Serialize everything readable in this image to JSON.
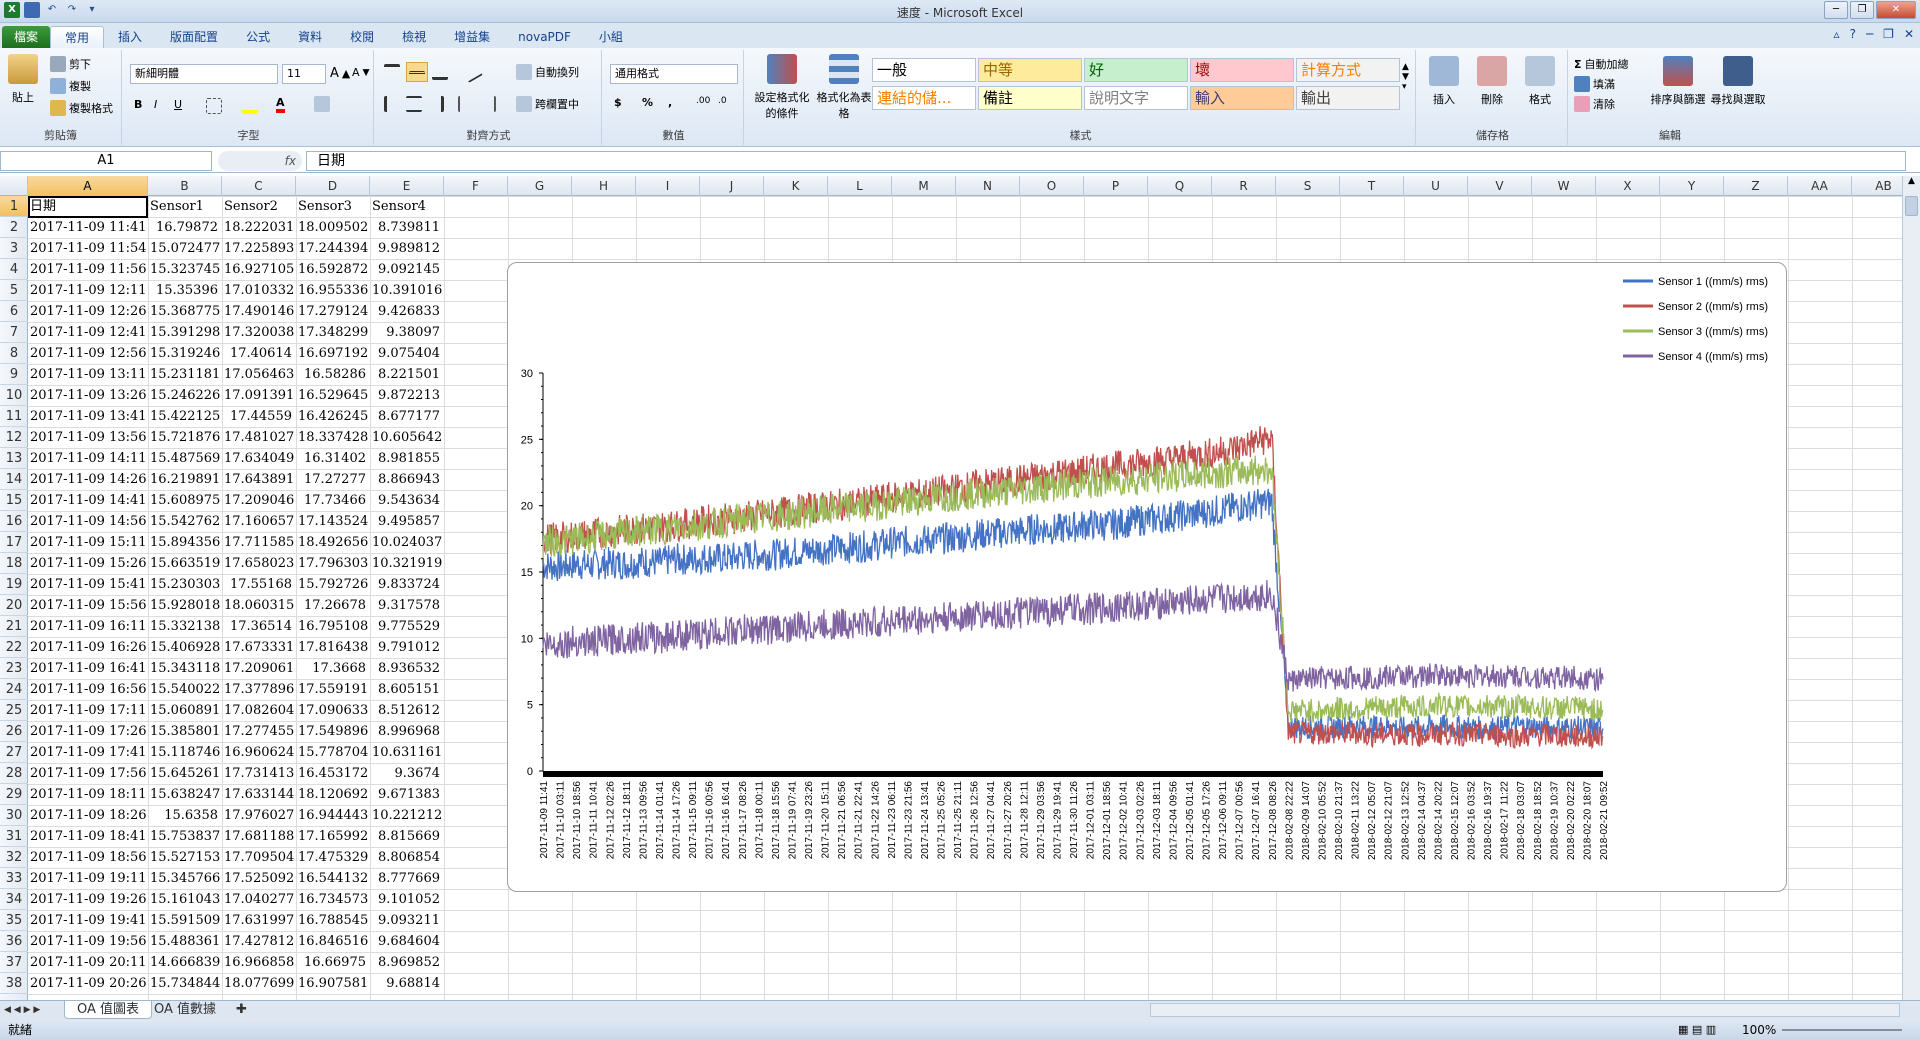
{
  "window": {
    "title": "速度 - Microsoft Excel"
  },
  "tabs": [
    {
      "label": "檔案"
    },
    {
      "label": "常用"
    },
    {
      "label": "插入"
    },
    {
      "label": "版面配置"
    },
    {
      "label": "公式"
    },
    {
      "label": "資料"
    },
    {
      "label": "校閱"
    },
    {
      "label": "檢視"
    },
    {
      "label": "增益集"
    },
    {
      "label": "novaPDF"
    },
    {
      "label": "小組"
    }
  ],
  "ribbon": {
    "clipboard": {
      "paste": "貼上",
      "cut": "剪下",
      "copy": "複製",
      "format_painter": "複製格式",
      "label": "剪貼簿"
    },
    "font": {
      "name": "新細明體",
      "size": "11",
      "label": "字型"
    },
    "alignment": {
      "wrap": "自動換列",
      "merge": "跨欄置中",
      "label": "對齊方式"
    },
    "number": {
      "format": "通用格式",
      "label": "數值"
    },
    "styles": {
      "conditional": "設定格式化的條件",
      "as_table": "格式化為表格",
      "cells": [
        {
          "text": "一般",
          "bg": "#ffffff",
          "fg": "#000000"
        },
        {
          "text": "中等",
          "bg": "#ffeb9c",
          "fg": "#9c6500"
        },
        {
          "text": "好",
          "bg": "#c6efce",
          "fg": "#006100"
        },
        {
          "text": "壞",
          "bg": "#ffc7ce",
          "fg": "#9c0006"
        },
        {
          "text": "計算方式",
          "bg": "#f2f2f2",
          "fg": "#fa7d00"
        },
        {
          "text": "連結的儲...",
          "bg": "#ffffff",
          "fg": "#fa7d00"
        },
        {
          "text": "備註",
          "bg": "#ffffcc",
          "fg": "#000000"
        },
        {
          "text": "說明文字",
          "bg": "#ffffff",
          "fg": "#7f7f7f"
        },
        {
          "text": "輸入",
          "bg": "#ffcc99",
          "fg": "#3f3f76"
        },
        {
          "text": "輸出",
          "bg": "#f2f2f2",
          "fg": "#3f3f3f"
        }
      ],
      "label": "樣式"
    },
    "cells_group": {
      "insert": "插入",
      "delete": "刪除",
      "format": "格式",
      "label": "儲存格"
    },
    "editing": {
      "autosum": "自動加總",
      "fill": "填滿",
      "clear": "清除",
      "sort": "排序與篩選",
      "find": "尋找與選取",
      "label": "編輯"
    }
  },
  "formula_bar": {
    "name_box": "A1",
    "fx": "fx",
    "content": "日期"
  },
  "columns": [
    "A",
    "B",
    "C",
    "D",
    "E",
    "F",
    "G",
    "H",
    "I",
    "J",
    "K",
    "L",
    "M",
    "N",
    "O",
    "P",
    "Q",
    "R",
    "S",
    "T",
    "U",
    "V",
    "W",
    "X",
    "Y",
    "Z",
    "AA",
    "AB"
  ],
  "headers": [
    "日期",
    "Sensor1",
    "Sensor2",
    "Sensor3",
    "Sensor4"
  ],
  "rows": [
    [
      "2017-11-09 11:41",
      "16.79872",
      "18.222031",
      "18.009502",
      "8.739811"
    ],
    [
      "2017-11-09 11:54",
      "15.072477",
      "17.225893",
      "17.244394",
      "9.989812"
    ],
    [
      "2017-11-09 11:56",
      "15.323745",
      "16.927105",
      "16.592872",
      "9.092145"
    ],
    [
      "2017-11-09 12:11",
      "15.35396",
      "17.010332",
      "16.955336",
      "10.391016"
    ],
    [
      "2017-11-09 12:26",
      "15.368775",
      "17.490146",
      "17.279124",
      "9.426833"
    ],
    [
      "2017-11-09 12:41",
      "15.391298",
      "17.320038",
      "17.348299",
      "9.38097"
    ],
    [
      "2017-11-09 12:56",
      "15.319246",
      "17.40614",
      "16.697192",
      "9.075404"
    ],
    [
      "2017-11-09 13:11",
      "15.231181",
      "17.056463",
      "16.58286",
      "8.221501"
    ],
    [
      "2017-11-09 13:26",
      "15.246226",
      "17.091391",
      "16.529645",
      "9.872213"
    ],
    [
      "2017-11-09 13:41",
      "15.422125",
      "17.44559",
      "16.426245",
      "8.677177"
    ],
    [
      "2017-11-09 13:56",
      "15.721876",
      "17.481027",
      "18.337428",
      "10.605642"
    ],
    [
      "2017-11-09 14:11",
      "15.487569",
      "17.634049",
      "16.31402",
      "8.981855"
    ],
    [
      "2017-11-09 14:26",
      "16.219891",
      "17.643891",
      "17.27277",
      "8.866943"
    ],
    [
      "2017-11-09 14:41",
      "15.608975",
      "17.209046",
      "17.73466",
      "9.543634"
    ],
    [
      "2017-11-09 14:56",
      "15.542762",
      "17.160657",
      "17.143524",
      "9.495857"
    ],
    [
      "2017-11-09 15:11",
      "15.894356",
      "17.711585",
      "18.492656",
      "10.024037"
    ],
    [
      "2017-11-09 15:26",
      "15.663519",
      "17.658023",
      "17.796303",
      "10.321919"
    ],
    [
      "2017-11-09 15:41",
      "15.230303",
      "17.55168",
      "15.792726",
      "9.833724"
    ],
    [
      "2017-11-09 15:56",
      "15.928018",
      "18.060315",
      "17.26678",
      "9.317578"
    ],
    [
      "2017-11-09 16:11",
      "15.332138",
      "17.36514",
      "16.795108",
      "9.775529"
    ],
    [
      "2017-11-09 16:26",
      "15.406928",
      "17.673331",
      "17.816438",
      "9.791012"
    ],
    [
      "2017-11-09 16:41",
      "15.343118",
      "17.209061",
      "17.3668",
      "8.936532"
    ],
    [
      "2017-11-09 16:56",
      "15.540022",
      "17.377896",
      "17.559191",
      "8.605151"
    ],
    [
      "2017-11-09 17:11",
      "15.060891",
      "17.082604",
      "17.090633",
      "8.512612"
    ],
    [
      "2017-11-09 17:26",
      "15.385801",
      "17.277455",
      "17.549896",
      "8.996968"
    ],
    [
      "2017-11-09 17:41",
      "15.118746",
      "16.960624",
      "15.778704",
      "10.631161"
    ],
    [
      "2017-11-09 17:56",
      "15.645261",
      "17.731413",
      "16.453172",
      "9.3674"
    ],
    [
      "2017-11-09 18:11",
      "15.638247",
      "17.633144",
      "18.120692",
      "9.671383"
    ],
    [
      "2017-11-09 18:26",
      "15.6358",
      "17.976027",
      "16.944443",
      "10.221212"
    ],
    [
      "2017-11-09 18:41",
      "15.753837",
      "17.681188",
      "17.165992",
      "8.815669"
    ],
    [
      "2017-11-09 18:56",
      "15.527153",
      "17.709504",
      "17.475329",
      "8.806854"
    ],
    [
      "2017-11-09 19:11",
      "15.345766",
      "17.525092",
      "16.544132",
      "8.777669"
    ],
    [
      "2017-11-09 19:26",
      "15.161043",
      "17.040277",
      "16.734573",
      "9.101052"
    ],
    [
      "2017-11-09 19:41",
      "15.591509",
      "17.631997",
      "16.788545",
      "9.093211"
    ],
    [
      "2017-11-09 19:56",
      "15.488361",
      "17.427812",
      "16.846516",
      "9.684604"
    ],
    [
      "2017-11-09 20:11",
      "14.666839",
      "16.966858",
      "16.66975",
      "8.969852"
    ],
    [
      "2017-11-09 20:26",
      "15.734844",
      "18.077699",
      "16.907581",
      "9.68814"
    ]
  ],
  "chart_data": {
    "type": "line",
    "ylim": [
      0,
      30
    ],
    "yticks": [
      0,
      5,
      10,
      15,
      20,
      25,
      30
    ],
    "categories": [
      "2017-11-09 11:41",
      "2017-11-10 03:11",
      "2017-11-10 18:56",
      "2017-11-11 10:41",
      "2017-11-12 02:26",
      "2017-11-12 18:11",
      "2017-11-13 09:56",
      "2017-11-14 01:41",
      "2017-11-14 17:26",
      "2017-11-15 09:11",
      "2017-11-16 00:56",
      "2017-11-16 16:41",
      "2017-11-17 08:26",
      "2017-11-18 00:11",
      "2017-11-18 15:56",
      "2017-11-19 07:41",
      "2017-11-19 23:26",
      "2017-11-20 15:11",
      "2017-11-21 06:56",
      "2017-11-21 22:41",
      "2017-11-22 14:26",
      "2017-11-23 06:11",
      "2017-11-23 21:56",
      "2017-11-24 13:41",
      "2017-11-25 05:26",
      "2017-11-25 21:11",
      "2017-11-26 12:56",
      "2017-11-27 04:41",
      "2017-11-27 20:26",
      "2017-11-28 12:11",
      "2017-11-29 03:56",
      "2017-11-29 19:41",
      "2017-11-30 11:26",
      "2017-12-01 03:11",
      "2017-12-01 18:56",
      "2017-12-02 10:41",
      "2017-12-03 02:26",
      "2017-12-03 18:11",
      "2017-12-04 09:56",
      "2017-12-05 01:41",
      "2017-12-05 17:26",
      "2017-12-06 09:11",
      "2017-12-07 00:56",
      "2017-12-07 16:41",
      "2017-12-08 08:26",
      "2018-02-08 22:22",
      "2018-02-09 14:07",
      "2018-02-10 05:52",
      "2018-02-10 21:37",
      "2018-02-11 13:22",
      "2018-02-12 05:07",
      "2018-02-12 21:07",
      "2018-02-13 12:52",
      "2018-02-14 04:37",
      "2018-02-14 20:22",
      "2018-02-15 12:07",
      "2018-02-16 03:52",
      "2018-02-16 19:37",
      "2018-02-17 11:22",
      "2018-02-18 03:07",
      "2018-02-18 18:52",
      "2018-02-19 10:37",
      "2018-02-20 02:22",
      "2018-02-20 18:07",
      "2018-02-21 09:52"
    ],
    "series": [
      {
        "name": "Sensor 1 ((mm/s) rms)",
        "color": "#4472c4",
        "values": [
          15.5,
          15.4,
          15.6,
          15.5,
          15.7,
          15.6,
          15.8,
          15.7,
          16.0,
          15.9,
          16.1,
          16.0,
          16.2,
          16.3,
          16.3,
          16.5,
          16.6,
          16.7,
          16.8,
          16.9,
          17.0,
          17.2,
          17.3,
          17.4,
          17.5,
          17.6,
          17.8,
          17.9,
          18.0,
          18.1,
          18.3,
          18.2,
          18.4,
          18.6,
          18.5,
          18.7,
          18.9,
          19.0,
          19.2,
          19.3,
          19.5,
          19.7,
          19.9,
          20.1,
          20.3,
          3.4,
          3.3,
          3.4,
          3.3,
          3.4,
          3.3,
          3.4,
          3.2,
          3.3,
          3.4,
          3.3,
          3.3,
          3.2,
          3.3,
          3.4,
          3.3,
          3.2,
          3.3,
          3.2,
          3.2
        ]
      },
      {
        "name": "Sensor 2 ((mm/s) rms)",
        "color": "#c0504d",
        "values": [
          17.5,
          17.6,
          17.7,
          17.9,
          18.0,
          18.2,
          18.3,
          18.4,
          18.5,
          18.7,
          18.9,
          19.0,
          19.1,
          19.3,
          19.4,
          19.6,
          19.8,
          19.9,
          20.1,
          20.2,
          20.4,
          20.6,
          20.8,
          20.9,
          21.1,
          21.3,
          21.5,
          21.7,
          21.8,
          22.0,
          22.2,
          22.4,
          22.5,
          22.7,
          22.9,
          23.0,
          23.2,
          23.4,
          23.5,
          23.7,
          23.9,
          24.1,
          24.4,
          24.8,
          25.1,
          2.9,
          2.8,
          2.9,
          2.8,
          2.9,
          2.7,
          2.8,
          2.8,
          2.7,
          2.8,
          2.8,
          2.7,
          2.8,
          2.7,
          2.6,
          2.7,
          2.7,
          2.6,
          2.6,
          2.6
        ]
      },
      {
        "name": "Sensor 3 ((mm/s) rms)",
        "color": "#9bbb59",
        "values": [
          17.2,
          17.3,
          17.5,
          17.6,
          17.8,
          17.9,
          18.1,
          18.2,
          18.4,
          18.5,
          18.6,
          18.8,
          19.0,
          19.1,
          19.2,
          19.3,
          19.5,
          19.6,
          19.8,
          19.9,
          20.0,
          20.2,
          20.3,
          20.5,
          20.6,
          20.8,
          20.9,
          21.0,
          21.1,
          21.2,
          21.4,
          21.5,
          21.6,
          21.7,
          21.8,
          21.9,
          22.0,
          22.1,
          22.2,
          22.3,
          22.4,
          22.5,
          22.6,
          22.7,
          22.8,
          4.5,
          4.6,
          4.5,
          4.7,
          4.6,
          4.8,
          4.7,
          4.9,
          4.8,
          5.0,
          4.9,
          4.8,
          4.9,
          4.8,
          4.9,
          4.8,
          4.7,
          4.8,
          4.7,
          4.6
        ]
      },
      {
        "name": "Sensor 4 ((mm/s) rms)",
        "color": "#8064a2",
        "values": [
          9.5,
          9.6,
          9.8,
          9.7,
          9.9,
          10.0,
          10.1,
          10.0,
          10.3,
          10.2,
          10.4,
          10.5,
          10.6,
          10.7,
          10.7,
          10.8,
          10.9,
          11.0,
          11.1,
          11.1,
          11.2,
          11.3,
          11.4,
          11.4,
          11.5,
          11.6,
          11.7,
          11.8,
          11.8,
          11.9,
          12.0,
          12.1,
          12.2,
          12.2,
          12.3,
          12.4,
          12.5,
          12.6,
          12.7,
          12.8,
          12.9,
          13.0,
          13.1,
          13.2,
          13.3,
          6.8,
          6.9,
          7.0,
          6.9,
          7.1,
          7.0,
          7.1,
          7.2,
          7.1,
          7.3,
          7.2,
          7.1,
          7.2,
          7.1,
          7.2,
          7.1,
          7.0,
          7.1,
          7.0,
          6.9
        ]
      }
    ]
  },
  "sheet_tabs": [
    "OA 值圖表",
    "OA 值數據"
  ],
  "status": {
    "ready": "就緒",
    "zoom": "100%"
  }
}
